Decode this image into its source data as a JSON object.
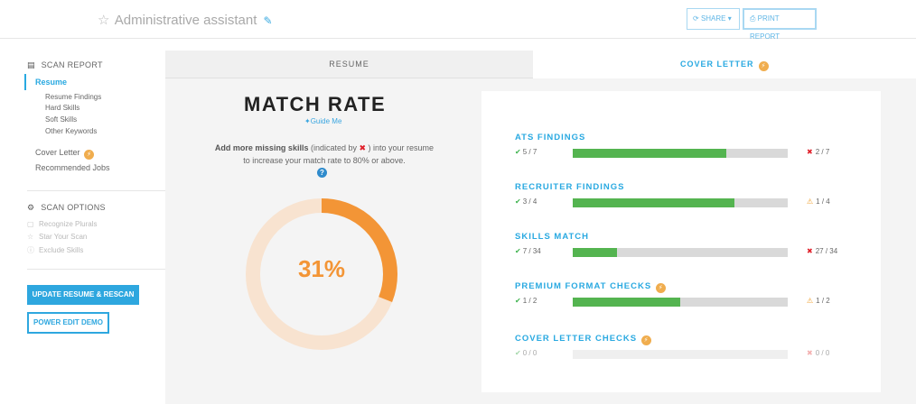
{
  "header": {
    "title": "Administrative assistant",
    "share_label": "SHARE",
    "print_label": "PRINT REPORT"
  },
  "sidebar": {
    "scan_report": "SCAN REPORT",
    "active_item": "Resume",
    "sub_items": [
      "Resume Findings",
      "Hard Skills",
      "Soft Skills",
      "Other Keywords"
    ],
    "cover_letter": "Cover Letter",
    "recommended_jobs": "Recommended Jobs",
    "scan_options": "SCAN OPTIONS",
    "options": [
      "Recognize Plurals",
      "Star Your Scan",
      "Exclude Skills"
    ],
    "update_button": "UPDATE RESUME & RESCAN",
    "demo_button": "POWER EDIT DEMO"
  },
  "tabs": {
    "resume": "RESUME",
    "cover_letter": "COVER LETTER"
  },
  "match": {
    "title": "MATCH RATE",
    "guide": "Guide Me",
    "desc_bold": "Add more missing skills",
    "desc_mid": " (indicated by ",
    "desc_end": " ) into your resume to increase your match rate to 80% or above.",
    "percent_label": "31%",
    "percent": 0.31,
    "ring_color": "#f39536",
    "ring_track": "#f8e3d0"
  },
  "findings": [
    {
      "title": "ATS FINDINGS",
      "pass": "5 / 7",
      "issue": "2 / 7",
      "issue_type": "x",
      "fill": 0.714,
      "dim": false,
      "badge": false
    },
    {
      "title": "RECRUITER FINDINGS",
      "pass": "3 / 4",
      "issue": "1 / 4",
      "issue_type": "warn",
      "fill": 0.75,
      "dim": false,
      "badge": false
    },
    {
      "title": "SKILLS MATCH",
      "pass": "7 / 34",
      "issue": "27 / 34",
      "issue_type": "x",
      "fill": 0.206,
      "dim": false,
      "badge": false
    },
    {
      "title": "PREMIUM FORMAT CHECKS",
      "pass": "1 / 2",
      "issue": "1 / 2",
      "issue_type": "warn",
      "fill": 0.5,
      "dim": false,
      "badge": true
    },
    {
      "title": "COVER LETTER CHECKS",
      "pass": "0 / 0",
      "issue": "0 / 0",
      "issue_type": "x",
      "fill": 0,
      "dim": true,
      "badge": true
    }
  ]
}
